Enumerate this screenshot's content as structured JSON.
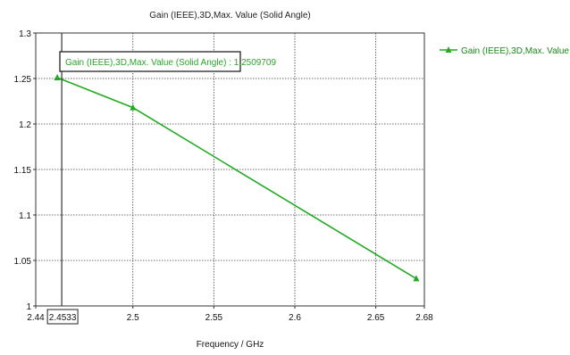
{
  "chart_data": {
    "type": "line",
    "title": "Gain (IEEE),3D,Max. Value (Solid Angle)",
    "xlabel": "Frequency / GHz",
    "ylabel": "",
    "xlim": [
      2.44,
      2.68
    ],
    "ylim": [
      1.0,
      1.3
    ],
    "x_ticks": [
      "2.44",
      "2.5",
      "2.55",
      "2.6",
      "2.65",
      "2.68"
    ],
    "y_ticks": [
      "1",
      "1.05",
      "1.1",
      "1.15",
      "1.2",
      "1.25",
      "1.3"
    ],
    "grid": true,
    "legend_position": "top-right",
    "series": [
      {
        "name": "Gain (IEEE),3D,Max. Value (...",
        "color": "#22aa22",
        "marker": "triangle",
        "x": [
          2.4533,
          2.5,
          2.675
        ],
        "y": [
          1.2509709,
          1.218,
          1.03
        ]
      }
    ],
    "marker_cursor": {
      "x": 2.4533,
      "x_label": "2.4533",
      "tooltip": "Gain (IEEE),3D,Max. Value (Solid Angle) : 1.2509709"
    }
  }
}
